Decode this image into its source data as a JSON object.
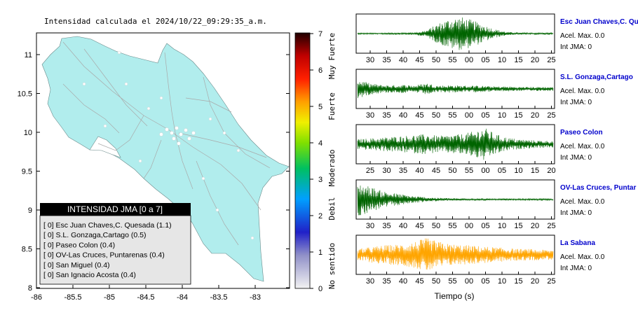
{
  "map": {
    "title": "Intensidad calculada el 2024/10/22_09:29:35_a.m.",
    "x_ticks": [
      "-86",
      "-85.5",
      "-85",
      "-84.5",
      "-84",
      "-83.5",
      "-83"
    ],
    "y_ticks": [
      "11",
      "10.5",
      "10",
      "9.5",
      "9",
      "8.5",
      "8"
    ],
    "colors": {
      "land": "#b1eded",
      "roads": "#a9a9a9",
      "box_header_bg": "#000000",
      "box_bg": "#e6e6e6"
    },
    "legend_box": {
      "title": "INTENSIDAD JMA [0 a 7]",
      "rows": [
        "[ 0]  Esc Juan Chaves,C. Quesada (1.1)",
        "[ 0]  S.L. Gonzaga,Cartago (0.5)",
        "[ 0]  Paseo Colon (0.4)",
        "[ 0]  OV-Las Cruces, Puntarenas (0.4)",
        "[ 0]  San Miguel (0.4)",
        "[ 0]  San Ignacio Acosta (0.4)"
      ]
    }
  },
  "colorbar": {
    "ticks": [
      "7",
      "6",
      "5",
      "4",
      "3",
      "2",
      "1",
      "0"
    ],
    "labels": [
      "Muy Fuerte",
      "Fuerte",
      "Moderado",
      "Debil",
      "No sentido"
    ]
  },
  "chart_data": [
    {
      "type": "line",
      "station": "Esc Juan Chaves,C. Qu",
      "color": "#006400",
      "x_ticks": [
        "30",
        "35",
        "40",
        "45",
        "50",
        "55",
        "00",
        "05",
        "10",
        "15",
        "20",
        "25"
      ],
      "accel_label": "Acel. Max. 0.0",
      "int_label": "Int JMA: 0",
      "envelope": [
        0.04,
        0.04,
        0.04,
        0.05,
        0.05,
        0.08,
        0.2,
        0.6,
        0.9,
        1.0,
        0.8,
        0.5,
        0.25,
        0.1,
        0.06,
        0.05,
        0.05,
        0.05
      ]
    },
    {
      "type": "line",
      "station": "S.L. Gonzaga,Cartago",
      "color": "#006400",
      "x_ticks": [
        "30",
        "35",
        "40",
        "45",
        "50",
        "55",
        "00",
        "05",
        "10",
        "15",
        "20",
        "25"
      ],
      "accel_label": "Acel. Max. 0.0",
      "int_label": "Int JMA: 0",
      "envelope": [
        0.6,
        0.35,
        0.25,
        0.22,
        0.25,
        0.22,
        0.35,
        0.2,
        0.22,
        0.2,
        0.2,
        0.18,
        0.15,
        0.15,
        0.12,
        0.12,
        0.12,
        0.12
      ]
    },
    {
      "type": "line",
      "station": "Paseo Colon",
      "color": "#006400",
      "x_ticks": [
        "25",
        "30",
        "35",
        "40",
        "45",
        "50",
        "55",
        "00",
        "05",
        "10",
        "15",
        "20"
      ],
      "accel_label": "Acel. Max. 0.0",
      "int_label": "Int JMA: 0",
      "envelope": [
        0.3,
        0.35,
        0.4,
        0.45,
        0.5,
        0.55,
        0.6,
        0.5,
        0.55,
        0.6,
        0.75,
        1.0,
        0.6,
        0.4,
        0.3,
        0.25,
        0.22,
        0.2
      ]
    },
    {
      "type": "line",
      "station": "OV-Las Cruces, Puntar",
      "color": "#006400",
      "x_ticks": [
        "30",
        "35",
        "40",
        "45",
        "50",
        "55",
        "00",
        "05",
        "10",
        "15",
        "20",
        "25"
      ],
      "accel_label": "Acel. Max. 0.0",
      "int_label": "Int JMA: 0",
      "envelope": [
        1.0,
        0.8,
        0.55,
        0.4,
        0.3,
        0.2,
        0.14,
        0.1,
        0.08,
        0.06,
        0.06,
        0.05,
        0.05,
        0.05,
        0.05,
        0.05,
        0.05,
        0.05
      ]
    },
    {
      "type": "line",
      "station": "La Sabana",
      "color": "#ffa500",
      "x_ticks": [
        "30",
        "35",
        "40",
        "45",
        "50",
        "55",
        "00",
        "05",
        "10",
        "15",
        "20",
        "25"
      ],
      "xlabel": "Tiempo (s)",
      "accel_label": "Acel. Max. 0.0",
      "int_label": "Int JMA: 0",
      "envelope": [
        0.35,
        0.45,
        0.55,
        0.6,
        0.65,
        0.8,
        1.0,
        0.8,
        0.65,
        0.6,
        0.55,
        0.5,
        0.45,
        0.4,
        0.35,
        0.35,
        0.3,
        0.3
      ]
    }
  ]
}
